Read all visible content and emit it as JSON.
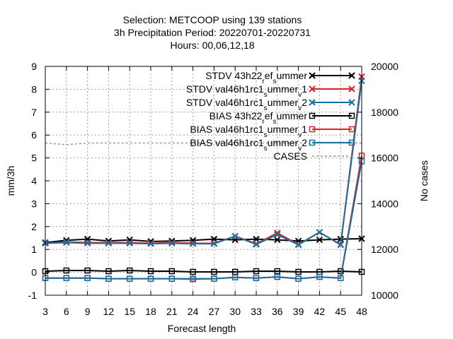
{
  "chart_data": {
    "type": "line",
    "title_lines": [
      "Selection: METCOOP using   139 stations",
      "3h Precipitation   Period: 20220701-20220731",
      "Hours:  00,06,12,18"
    ],
    "xlabel": "Forecast length",
    "ylabel": "mm/3h",
    "y2label": "No cases",
    "x": [
      3,
      6,
      9,
      12,
      15,
      18,
      21,
      24,
      27,
      30,
      33,
      36,
      39,
      42,
      45,
      48
    ],
    "xlim": [
      3,
      48
    ],
    "ylim": [
      -1,
      9
    ],
    "y2lim": [
      10000,
      20000
    ],
    "xticks": [
      "3",
      "6",
      "9",
      "12",
      "15",
      "18",
      "21",
      "24",
      "27",
      "30",
      "33",
      "36",
      "39",
      "42",
      "45",
      "48"
    ],
    "yticks": [
      "-1",
      "0",
      "1",
      "2",
      "3",
      "4",
      "5",
      "6",
      "7",
      "8",
      "9"
    ],
    "y2ticks": [
      "10000",
      "12000",
      "14000",
      "16000",
      "18000",
      "20000"
    ],
    "grid": true,
    "legend_position": "top-right",
    "series": [
      {
        "name": "STDV 43h22_ref_summer",
        "legend": {
          "parts": [
            {
              "t": "STDV 43h22"
            },
            {
              "t": "r",
              "sub": true
            },
            {
              "t": "ef"
            },
            {
              "t": "s",
              "sub": true
            },
            {
              "t": "ummer"
            }
          ]
        },
        "color": "#000000",
        "marker": "x",
        "axis": "y",
        "values": [
          1.3,
          1.4,
          1.45,
          1.37,
          1.42,
          1.35,
          1.37,
          1.4,
          1.45,
          1.42,
          1.45,
          1.42,
          1.37,
          1.42,
          1.45,
          1.47
        ]
      },
      {
        "name": "STDV val46h1rc1_summer_v1",
        "legend": {
          "parts": [
            {
              "t": "STDV val46h1rc1"
            },
            {
              "t": "s",
              "sub": true
            },
            {
              "t": "ummer"
            },
            {
              "t": "v",
              "sub": true
            },
            {
              "t": "1"
            }
          ]
        },
        "color": "#dd2222",
        "marker": "x",
        "axis": "y",
        "values": [
          1.27,
          1.33,
          1.3,
          1.3,
          1.3,
          1.27,
          1.3,
          1.27,
          1.27,
          1.58,
          1.25,
          1.72,
          1.22,
          1.75,
          1.22,
          8.55
        ]
      },
      {
        "name": "STDV val46h1rc1_summer_v2",
        "legend": {
          "parts": [
            {
              "t": "STDV val46h1rc1"
            },
            {
              "t": "s",
              "sub": true
            },
            {
              "t": "ummer"
            },
            {
              "t": "v",
              "sub": true
            },
            {
              "t": "2"
            }
          ]
        },
        "color": "#1a6f9e",
        "marker": "x",
        "axis": "y",
        "values": [
          1.27,
          1.3,
          1.27,
          1.27,
          1.27,
          1.25,
          1.27,
          1.25,
          1.25,
          1.58,
          1.22,
          1.65,
          1.2,
          1.75,
          1.2,
          8.37
        ]
      },
      {
        "name": "BIAS 43h22_ref_summer",
        "legend": {
          "parts": [
            {
              "t": "BIAS 43h22"
            },
            {
              "t": "r",
              "sub": true
            },
            {
              "t": "ef"
            },
            {
              "t": "s",
              "sub": true
            },
            {
              "t": "ummer"
            }
          ]
        },
        "color": "#000000",
        "marker": "square",
        "axis": "y",
        "values": [
          0.05,
          0.08,
          0.08,
          0.05,
          0.08,
          0.05,
          0.05,
          0.02,
          0.02,
          0.02,
          0.05,
          0.05,
          0.02,
          0.02,
          0.05,
          0.02
        ]
      },
      {
        "name": "BIAS val46h1rc1_summer_v1",
        "legend": {
          "parts": [
            {
              "t": "BIAS val46h1rc1"
            },
            {
              "t": "s",
              "sub": true
            },
            {
              "t": "ummer"
            },
            {
              "t": "v",
              "sub": true
            },
            {
              "t": "1"
            }
          ]
        },
        "color": "#dd2222",
        "marker": "square",
        "axis": "y",
        "values": [
          -0.25,
          -0.25,
          -0.25,
          -0.28,
          -0.28,
          -0.28,
          -0.28,
          -0.3,
          -0.28,
          -0.22,
          -0.25,
          -0.2,
          -0.28,
          -0.2,
          -0.25,
          5.1
        ]
      },
      {
        "name": "BIAS val46h1rc1_summer_v2",
        "legend": {
          "parts": [
            {
              "t": "BIAS val46h1rc1"
            },
            {
              "t": "s",
              "sub": true
            },
            {
              "t": "ummer"
            },
            {
              "t": "v",
              "sub": true
            },
            {
              "t": "2"
            }
          ]
        },
        "color": "#1a6f9e",
        "marker": "square",
        "axis": "y",
        "values": [
          -0.25,
          -0.25,
          -0.25,
          -0.28,
          -0.28,
          -0.28,
          -0.28,
          -0.28,
          -0.28,
          -0.22,
          -0.25,
          -0.2,
          -0.28,
          -0.2,
          -0.25,
          4.85
        ]
      },
      {
        "name": "CASES",
        "legend": {
          "parts": [
            {
              "t": "CASES"
            }
          ]
        },
        "color": "#999999",
        "marker": "none",
        "dashed": true,
        "axis": "y2",
        "values": [
          16650,
          16580,
          16650,
          16650,
          16650,
          16650,
          16650,
          16650,
          16650,
          16650,
          16650,
          16650,
          16650,
          16650,
          16650,
          16650
        ]
      }
    ]
  }
}
